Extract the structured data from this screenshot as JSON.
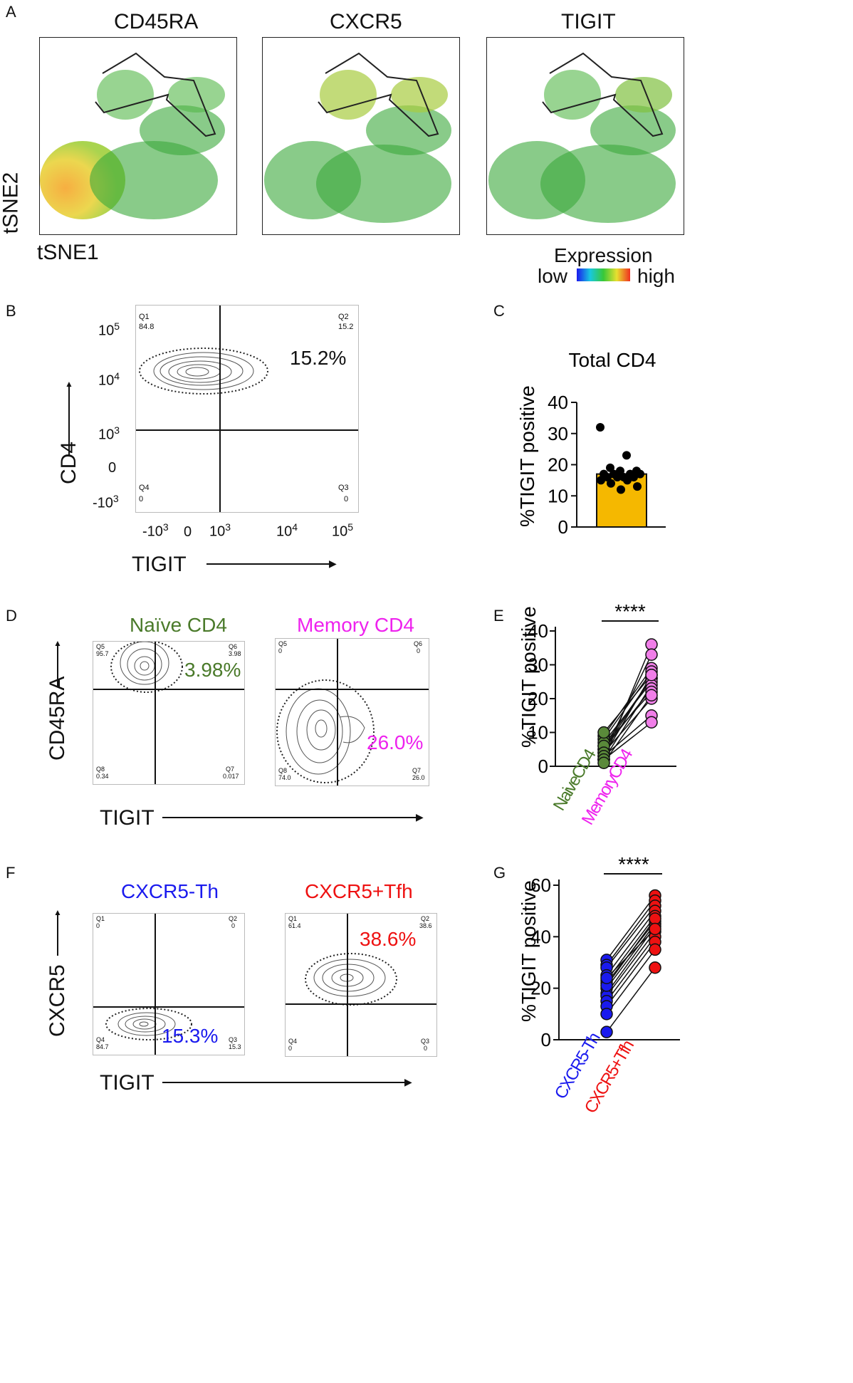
{
  "panels": {
    "A": "A",
    "B": "B",
    "C": "C",
    "D": "D",
    "E": "E",
    "F": "F",
    "G": "G"
  },
  "panelA": {
    "titles": [
      "CD45RA",
      "CXCR5",
      "TIGIT"
    ],
    "ylabel": "tSNE2",
    "xlabel": "tSNE1",
    "legend": {
      "title": "Expression",
      "low": "low",
      "high": "high"
    }
  },
  "panelB": {
    "q1": {
      "name": "Q1",
      "value": "84.8"
    },
    "q2": {
      "name": "Q2",
      "value": "15.2"
    },
    "q3": {
      "name": "Q3",
      "value": "0"
    },
    "q4": {
      "name": "Q4",
      "value": "0"
    },
    "big_percent": "15.2%",
    "ylabel": "CD4",
    "xlabel": "TIGIT"
  },
  "panelD": {
    "naive_title": "Naïve CD4",
    "memory_title": "Memory CD4",
    "naive": {
      "q5": "Q5",
      "q5v": "95.7",
      "q6": "Q6",
      "q6v": "3.98",
      "q7": "Q7",
      "q7v": "0.017",
      "q8": "Q8",
      "q8v": "0.34",
      "big": "3.98%"
    },
    "memory": {
      "q5": "Q5",
      "q5v": "0",
      "q6": "Q6",
      "q6v": "0",
      "q7": "Q7",
      "q7v": "26.0",
      "q8": "Q8",
      "q8v": "74.0",
      "big": "26.0%"
    },
    "ylabel": "CD45RA",
    "xlabel": "TIGIT"
  },
  "panelF": {
    "th_title": "CXCR5-Th",
    "tfh_title": "CXCR5+Tfh",
    "th": {
      "q1": "Q1",
      "q1v": "0",
      "q2": "Q2",
      "q2v": "0",
      "q3": "Q3",
      "q3v": "15.3",
      "q4": "Q4",
      "q4v": "84.7",
      "big": "15.3%"
    },
    "tfh": {
      "q1": "Q1",
      "q1v": "61.4",
      "q2": "Q2",
      "q2v": "38.6",
      "q3": "Q3",
      "q3v": "0",
      "q4": "Q4",
      "q4v": "0",
      "big": "38.6%"
    },
    "ylabel": "CXCR5",
    "xlabel": "TIGIT"
  },
  "ticks": {
    "bx": [
      "-10",
      "3",
      "0",
      "10",
      "3",
      "10",
      "4",
      "10",
      "5"
    ],
    "e5": "5",
    "e4": "4",
    "e3": "3",
    "ten": "10",
    "negten": "-10",
    "zero": "0"
  },
  "colors": {
    "naive": "#4a7a2a",
    "memory": "#ee22ee",
    "th": "#1a1aee",
    "tfh": "#ee1111",
    "bar": "#f5b800"
  },
  "chart_data": [
    {
      "type": "bar",
      "title": "Total CD4",
      "ylabel": "%TIGIT positive",
      "ylim": [
        0,
        40
      ],
      "yticks": [
        "0",
        "10",
        "20",
        "30",
        "40"
      ],
      "categories": [
        "Total CD4"
      ],
      "values": [
        17
      ],
      "points": [
        32,
        23,
        19,
        18,
        18,
        17,
        17,
        17,
        17,
        16,
        16,
        16,
        16,
        15,
        15,
        14,
        13,
        12
      ]
    },
    {
      "type": "scatter",
      "ylabel": "%TIGIT positive",
      "ylim": [
        0,
        40
      ],
      "yticks": [
        "0",
        "10",
        "20",
        "30",
        "40"
      ],
      "categories": [
        "NaiveCD4",
        "MemoryCD4"
      ],
      "significance": "****",
      "paired": [
        [
          2,
          36
        ],
        [
          4,
          33
        ],
        [
          9,
          29
        ],
        [
          8,
          28
        ],
        [
          3,
          27
        ],
        [
          6,
          26
        ],
        [
          5,
          26
        ],
        [
          7,
          25
        ],
        [
          2,
          24
        ],
        [
          5,
          23
        ],
        [
          6,
          22
        ],
        [
          4,
          20
        ],
        [
          3,
          15
        ],
        [
          2,
          13
        ],
        [
          10,
          27
        ],
        [
          1,
          21
        ]
      ]
    },
    {
      "type": "scatter",
      "ylabel": "%TIGIT positive",
      "ylim": [
        0,
        60
      ],
      "yticks": [
        "0",
        "20",
        "40",
        "60"
      ],
      "categories": [
        "CXCR5-Th",
        "CXCR5+Tfh"
      ],
      "significance": "****",
      "paired": [
        [
          31,
          56
        ],
        [
          29,
          54
        ],
        [
          28,
          52
        ],
        [
          25,
          50
        ],
        [
          23,
          48
        ],
        [
          22,
          46
        ],
        [
          20,
          45
        ],
        [
          18,
          44
        ],
        [
          17,
          42
        ],
        [
          15,
          40
        ],
        [
          13,
          38
        ],
        [
          10,
          35
        ],
        [
          3,
          28
        ],
        [
          21,
          47
        ],
        [
          24,
          43
        ]
      ]
    }
  ]
}
